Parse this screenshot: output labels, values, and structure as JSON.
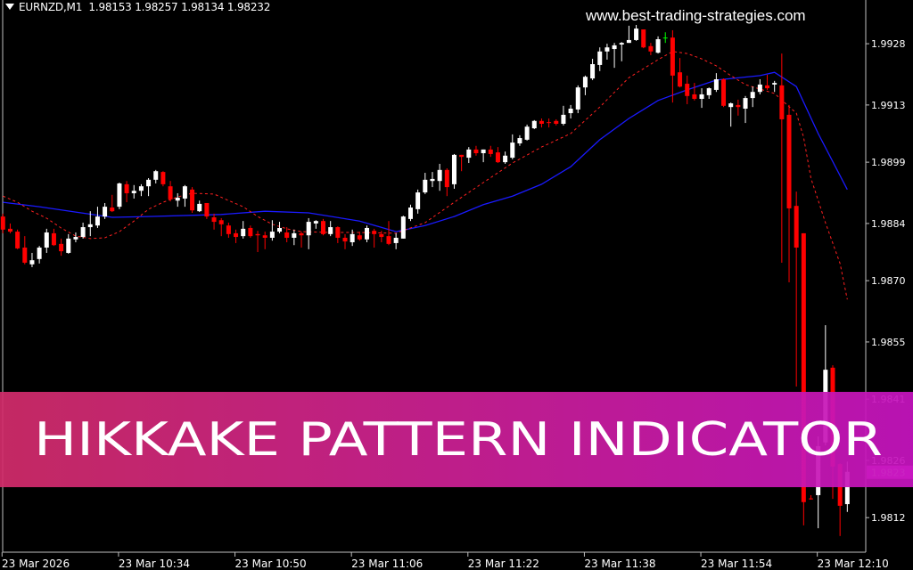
{
  "header": {
    "symbol": "EURNZD,M1",
    "ohlc": "1.98153 1.98257 1.98134 1.98232"
  },
  "watermark": "www.best-trading-strategies.com",
  "banner": {
    "text": "HIKKAKE PATTERN INDICATOR",
    "color_left": "#d22c6a",
    "color_right": "#c614bf"
  },
  "colors": {
    "background": "#000000",
    "bull": "#ffffff",
    "bear": "#ff0000",
    "doji_signal": "#00ff00",
    "ma_slow": "#1a1aff",
    "ma_fast": "#ff2020",
    "axis": "#c0c0c0"
  },
  "chart_data": {
    "type": "candlestick",
    "symbol": "EURNZD",
    "timeframe": "M1",
    "ylim": [
      1.98045,
      1.99387
    ],
    "yticks": [
      "1.9928",
      "1.9913",
      "1.9899",
      "1.9884",
      "1.9870",
      "1.9855",
      "1.9841",
      "1.9826",
      "1.9812"
    ],
    "current_price_label": "1.9823",
    "xticks": [
      {
        "bar": 0,
        "label": "23 Mar 2026"
      },
      {
        "bar": 16,
        "label": "23 Mar 10:34"
      },
      {
        "bar": 32,
        "label": "23 Mar 10:50"
      },
      {
        "bar": 48,
        "label": "23 Mar 11:06"
      },
      {
        "bar": 64,
        "label": "23 Mar 11:22"
      },
      {
        "bar": 80,
        "label": "23 Mar 11:38"
      },
      {
        "bar": 96,
        "label": "23 Mar 11:54"
      },
      {
        "bar": 112,
        "label": "23 Mar 12:10"
      }
    ],
    "candles_ohlc": [
      [
        1.98857,
        1.98864,
        1.98816,
        1.98825
      ],
      [
        1.98827,
        1.9884,
        1.98816,
        1.9882
      ],
      [
        1.9882,
        1.98825,
        1.98777,
        1.98779
      ],
      [
        1.98781,
        1.98809,
        1.9874,
        1.98744
      ],
      [
        1.9874,
        1.98768,
        1.98733,
        1.9875
      ],
      [
        1.98753,
        1.98785,
        1.98742,
        1.98781
      ],
      [
        1.98781,
        1.98827,
        1.98768,
        1.98818
      ],
      [
        1.98816,
        1.98827,
        1.98785,
        1.98787
      ],
      [
        1.9879,
        1.98803,
        1.98761,
        1.98772
      ],
      [
        1.98768,
        1.98814,
        1.98766,
        1.98803
      ],
      [
        1.98801,
        1.98818,
        1.98794,
        1.98807
      ],
      [
        1.98807,
        1.98842,
        1.98803,
        1.98831
      ],
      [
        1.98831,
        1.9887,
        1.98809,
        1.98838
      ],
      [
        1.98835,
        1.98881,
        1.98829,
        1.98857
      ],
      [
        1.98857,
        1.9889,
        1.98851,
        1.98881
      ],
      [
        1.98879,
        1.9891,
        1.98868,
        1.9887
      ],
      [
        1.98881,
        1.9894,
        1.98875,
        1.98938
      ],
      [
        1.98936,
        1.98944,
        1.98892,
        1.98914
      ],
      [
        1.98914,
        1.98934,
        1.98901,
        1.9892
      ],
      [
        1.9892,
        1.98936,
        1.98907,
        1.98931
      ],
      [
        1.98931,
        1.98951,
        1.98907,
        1.98947
      ],
      [
        1.98947,
        1.98971,
        1.98938,
        1.98968
      ],
      [
        1.98966,
        1.98968,
        1.98931,
        1.98936
      ],
      [
        1.98931,
        1.98944,
        1.98894,
        1.98899
      ],
      [
        1.98896,
        1.98914,
        1.98881,
        1.98903
      ],
      [
        1.98901,
        1.98934,
        1.98881,
        1.98931
      ],
      [
        1.98923,
        1.98929,
        1.98866,
        1.98872
      ],
      [
        1.9887,
        1.98896,
        1.98868,
        1.98888
      ],
      [
        1.9889,
        1.9889,
        1.98851,
        1.98857
      ],
      [
        1.98855,
        1.98864,
        1.98825,
        1.98844
      ],
      [
        1.98848,
        1.98853,
        1.98809,
        1.98838
      ],
      [
        1.98835,
        1.98842,
        1.98805,
        1.98814
      ],
      [
        1.98816,
        1.98825,
        1.98792,
        1.98807
      ],
      [
        1.98809,
        1.98846,
        1.98803,
        1.98827
      ],
      [
        1.98829,
        1.98835,
        1.98805,
        1.98809
      ],
      [
        1.98814,
        1.98822,
        1.9877,
        1.98811
      ],
      [
        1.98811,
        1.9882,
        1.98777,
        1.98805
      ],
      [
        1.98805,
        1.98848,
        1.98798,
        1.9882
      ],
      [
        1.9882,
        1.98844,
        1.98816,
        1.98829
      ],
      [
        1.98818,
        1.98831,
        1.98794,
        1.98805
      ],
      [
        1.98805,
        1.98825,
        1.98787,
        1.98816
      ],
      [
        1.98816,
        1.9882,
        1.98781,
        1.98811
      ],
      [
        1.98811,
        1.98853,
        1.98777,
        1.98844
      ],
      [
        1.9884,
        1.98848,
        1.98827,
        1.98846
      ],
      [
        1.98846,
        1.98851,
        1.98811,
        1.98814
      ],
      [
        1.98814,
        1.98846,
        1.98809,
        1.98831
      ],
      [
        1.98831,
        1.98833,
        1.98792,
        1.98805
      ],
      [
        1.98805,
        1.98814,
        1.98777,
        1.98796
      ],
      [
        1.98794,
        1.98825,
        1.98785,
        1.98814
      ],
      [
        1.98811,
        1.9882,
        1.98798,
        1.98801
      ],
      [
        1.98801,
        1.98835,
        1.98794,
        1.98829
      ],
      [
        1.98822,
        1.98827,
        1.98781,
        1.98814
      ],
      [
        1.98814,
        1.98822,
        1.98794,
        1.98807
      ],
      [
        1.98809,
        1.98846,
        1.98787,
        1.9879
      ],
      [
        1.98792,
        1.98816,
        1.98777,
        1.98805
      ],
      [
        1.98803,
        1.98859,
        1.98803,
        1.98857
      ],
      [
        1.98851,
        1.98886,
        1.98846,
        1.98879
      ],
      [
        1.98875,
        1.98923,
        1.98864,
        1.98916
      ],
      [
        1.98916,
        1.98964,
        1.98912,
        1.98947
      ],
      [
        1.98944,
        1.98966,
        1.98929,
        1.98949
      ],
      [
        1.98944,
        1.98986,
        1.9892,
        1.98971
      ],
      [
        1.98971,
        1.98975,
        1.98907,
        1.98929
      ],
      [
        1.98936,
        1.9901,
        1.98925,
        1.99008
      ],
      [
        1.99008,
        1.99008,
        1.98968,
        1.99003
      ],
      [
        1.99001,
        1.99027,
        1.98988,
        1.99021
      ],
      [
        1.99021,
        1.9903,
        1.99006,
        1.99012
      ],
      [
        1.99012,
        1.99021,
        1.9899,
        1.99021
      ],
      [
        1.99021,
        1.9903,
        1.99003,
        1.9901
      ],
      [
        1.99014,
        1.99027,
        1.98988,
        1.9899
      ],
      [
        1.9899,
        1.99016,
        1.98986,
        1.99006
      ],
      [
        1.99001,
        1.99058,
        1.98997,
        1.99038
      ],
      [
        1.99036,
        1.99056,
        1.9903,
        1.99049
      ],
      [
        1.99045,
        1.99082,
        1.99043,
        1.99077
      ],
      [
        1.99073,
        1.99093,
        1.99071,
        1.99091
      ],
      [
        1.99091,
        1.99097,
        1.99075,
        1.99084
      ],
      [
        1.99088,
        1.99097,
        1.99075,
        1.99086
      ],
      [
        1.99091,
        1.99095,
        1.9908,
        1.99084
      ],
      [
        1.99084,
        1.99128,
        1.9908,
        1.99106
      ],
      [
        1.9911,
        1.9913,
        1.99097,
        1.99121
      ],
      [
        1.99119,
        1.99178,
        1.9911,
        1.99173
      ],
      [
        1.99173,
        1.99202,
        1.99154,
        1.99199
      ],
      [
        1.99195,
        1.99243,
        1.99191,
        1.9923
      ],
      [
        1.99228,
        1.99271,
        1.99213,
        1.99261
      ],
      [
        1.99261,
        1.9928,
        1.99241,
        1.99271
      ],
      [
        1.99267,
        1.99282,
        1.99221,
        1.99276
      ],
      [
        1.99278,
        1.99284,
        1.99237,
        1.99282
      ],
      [
        1.99282,
        1.99324,
        1.99282,
        1.99289
      ],
      [
        1.99289,
        1.99326,
        1.99287,
        1.99317
      ],
      [
        1.99315,
        1.99315,
        1.99269,
        1.99271
      ],
      [
        1.99274,
        1.99282,
        1.99252,
        1.99261
      ],
      [
        1.99258,
        1.99298,
        1.99256,
        1.99291
      ],
      [
        1.99295,
        1.99308,
        1.99282,
        1.99295
      ],
      [
        1.99295,
        1.99313,
        1.99136,
        1.99202
      ],
      [
        1.9921,
        1.99245,
        1.99173,
        1.99175
      ],
      [
        1.99182,
        1.99202,
        1.99132,
        1.99152
      ],
      [
        1.99156,
        1.99184,
        1.99141,
        1.99145
      ],
      [
        1.99145,
        1.99171,
        1.99123,
        1.99156
      ],
      [
        1.99154,
        1.99173,
        1.99145,
        1.99171
      ],
      [
        1.99167,
        1.99208,
        1.99162,
        1.99193
      ],
      [
        1.99193,
        1.99195,
        1.99125,
        1.99128
      ],
      [
        1.99125,
        1.99136,
        1.99077,
        1.99134
      ],
      [
        1.9913,
        1.99143,
        1.99104,
        1.99125
      ],
      [
        1.99121,
        1.99152,
        1.99086,
        1.99147
      ],
      [
        1.99147,
        1.99175,
        1.99125,
        1.99162
      ],
      [
        1.99162,
        1.99193,
        1.99156,
        1.9918
      ],
      [
        1.99178,
        1.99204,
        1.99167,
        1.99171
      ],
      [
        1.9918,
        1.99189,
        1.99162,
        1.99184
      ],
      [
        1.99178,
        1.99256,
        1.98744,
        1.99095
      ],
      [
        1.99106,
        1.9913,
        1.98696,
        1.98877
      ],
      [
        1.98883,
        1.98918,
        1.98441,
        1.98781
      ],
      [
        1.98816,
        1.98816,
        1.98101,
        1.98158
      ],
      [
        1.98167,
        1.98175,
        1.98164,
        1.98166
      ],
      [
        1.98175,
        1.98319,
        1.98094,
        1.98295
      ],
      [
        1.98304,
        1.98591,
        1.98297,
        1.98482
      ],
      [
        1.98487,
        1.98493,
        1.98166,
        1.98245
      ],
      [
        1.98251,
        1.98253,
        1.98075,
        1.98149
      ],
      [
        1.98153,
        1.98257,
        1.98134,
        1.98232
      ]
    ],
    "signal_bars": [
      91
    ],
    "series": [
      {
        "style": "solid",
        "color": "#1a1aff",
        "points": [
          [
            0,
            1.98892
          ],
          [
            5,
            1.98881
          ],
          [
            10,
            1.98868
          ],
          [
            15,
            1.98855
          ],
          [
            20,
            1.98857
          ],
          [
            30,
            1.98862
          ],
          [
            36,
            1.9887
          ],
          [
            42,
            1.98866
          ],
          [
            49,
            1.98846
          ],
          [
            54,
            1.9882
          ],
          [
            58,
            1.98835
          ],
          [
            62,
            1.98857
          ],
          [
            66,
            1.98886
          ],
          [
            70,
            1.98907
          ],
          [
            74,
            1.98936
          ],
          [
            78,
            1.98979
          ],
          [
            82,
            1.99045
          ],
          [
            86,
            1.99097
          ],
          [
            90,
            1.99141
          ],
          [
            94,
            1.99167
          ],
          [
            98,
            1.99191
          ],
          [
            104,
            1.99202
          ],
          [
            106,
            1.9921
          ],
          [
            109,
            1.99175
          ],
          [
            112,
            1.9906
          ],
          [
            116,
            1.98923
          ]
        ]
      },
      {
        "style": "dashed",
        "color": "#ff2020",
        "points": [
          [
            0,
            1.98907
          ],
          [
            2,
            1.98892
          ],
          [
            4,
            1.9887
          ],
          [
            6,
            1.98853
          ],
          [
            8,
            1.98829
          ],
          [
            10,
            1.98809
          ],
          [
            12,
            1.98803
          ],
          [
            14,
            1.98805
          ],
          [
            16,
            1.9882
          ],
          [
            18,
            1.98846
          ],
          [
            20,
            1.98875
          ],
          [
            22,
            1.98892
          ],
          [
            24,
            1.98905
          ],
          [
            26,
            1.98914
          ],
          [
            29,
            1.98912
          ],
          [
            31,
            1.98896
          ],
          [
            33,
            1.98881
          ],
          [
            35,
            1.98857
          ],
          [
            37,
            1.98838
          ],
          [
            39,
            1.98827
          ],
          [
            41,
            1.9882
          ],
          [
            45,
            1.98818
          ],
          [
            49,
            1.98818
          ],
          [
            54,
            1.98816
          ],
          [
            58,
            1.98842
          ],
          [
            62,
            1.98892
          ],
          [
            66,
            1.9894
          ],
          [
            70,
            1.98988
          ],
          [
            74,
            1.99027
          ],
          [
            78,
            1.9906
          ],
          [
            82,
            1.99125
          ],
          [
            86,
            1.99197
          ],
          [
            90,
            1.99241
          ],
          [
            92,
            1.99261
          ],
          [
            94,
            1.99256
          ],
          [
            96,
            1.99243
          ],
          [
            98,
            1.99226
          ],
          [
            100,
            1.99202
          ],
          [
            102,
            1.9918
          ],
          [
            104,
            1.99169
          ],
          [
            106,
            1.99158
          ],
          [
            109,
            1.9911
          ],
          [
            110,
            1.99051
          ],
          [
            111,
            1.98951
          ],
          [
            113,
            1.98842
          ],
          [
            115,
            1.98742
          ],
          [
            116,
            1.98654
          ]
        ]
      }
    ]
  }
}
